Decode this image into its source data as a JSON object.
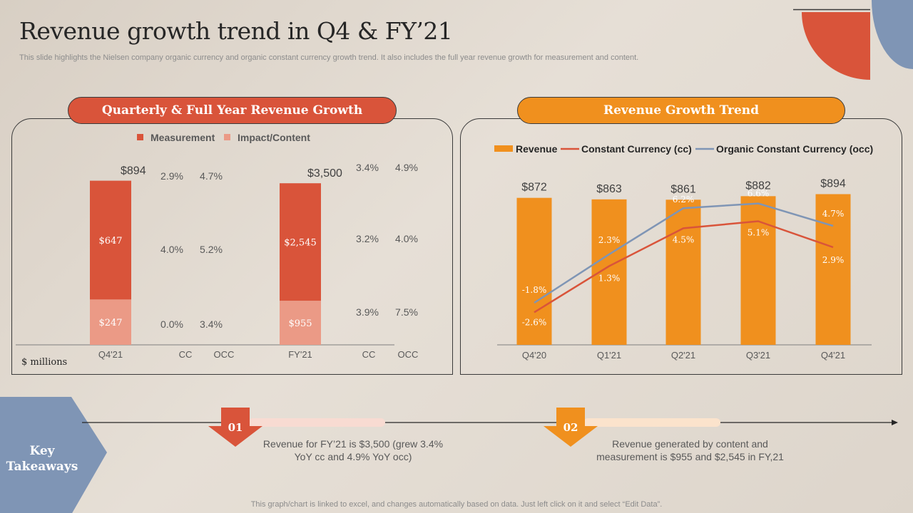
{
  "title": "Revenue growth trend in Q4 & FY’21",
  "subtitle": "This slide highlights the Nielsen company organic currency and organic constant currency growth trend. It also includes the full year revenue growth for measurement and content.",
  "left_panel": {
    "heading": "Quarterly & Full Year Revenue Growth",
    "unit_label": "$ millions"
  },
  "right_panel": {
    "heading": "Revenue Growth Trend"
  },
  "colors": {
    "measurement": "#d9543a",
    "content": "#eb9a86",
    "revenue": "#f0901e",
    "cc": "#d9543a",
    "occ": "#7f95b5",
    "navy": "#7f95b5"
  },
  "chart_data": [
    {
      "type": "bar",
      "stacked": true,
      "legend": [
        "Measurement",
        "Impact/Content"
      ],
      "legend_position": "top",
      "categories": [
        "Q4'21",
        "FY'21"
      ],
      "series": [
        {
          "name": "Measurement",
          "values": [
            647,
            2545
          ],
          "labels": [
            "$647",
            "$2,545"
          ]
        },
        {
          "name": "Impact/Content",
          "values": [
            247,
            955
          ],
          "labels": [
            "$247",
            "$955"
          ]
        }
      ],
      "totals": [
        "$894",
        "$3,500"
      ],
      "growth_columns": [
        "CC",
        "OCC"
      ],
      "growth_table": [
        {
          "category": "Q4'21",
          "rows": [
            [
              "2.9%",
              "4.7%"
            ],
            [
              "4.0%",
              "5.2%"
            ],
            [
              "0.0%",
              "3.4%"
            ]
          ]
        },
        {
          "category": "FY'21",
          "rows": [
            [
              "3.4%",
              "4.9%"
            ],
            [
              "3.2%",
              "4.0%"
            ],
            [
              "3.9%",
              "7.5%"
            ]
          ]
        }
      ],
      "ylabel": "$ millions",
      "ylim": [
        0,
        3500
      ],
      "grid": false
    },
    {
      "type": "bar",
      "legend": [
        "Revenue",
        "Constant Currency (cc)",
        "Organic Constant Currency (occ)"
      ],
      "legend_position": "top",
      "categories": [
        "Q4'20",
        "Q1'21",
        "Q2'21",
        "Q3'21",
        "Q4'21"
      ],
      "revenue": {
        "name": "Revenue",
        "values": [
          872,
          863,
          861,
          882,
          894
        ],
        "labels": [
          "$872",
          "$863",
          "$861",
          "$882",
          "$894"
        ]
      },
      "lines": [
        {
          "name": "Constant Currency (cc)",
          "values": [
            -2.6,
            1.3,
            4.5,
            5.1,
            2.9
          ],
          "labels": [
            "-2.6%",
            "1.3%",
            "4.5%",
            "5.1%",
            "2.9%"
          ]
        },
        {
          "name": "Organic Constant Currency (occ)",
          "values": [
            -1.8,
            2.3,
            6.2,
            6.6,
            4.7
          ],
          "labels": [
            "-1.8%",
            "2.3%",
            "6.2%",
            "6.6%",
            "4.7%"
          ]
        }
      ],
      "grid": false
    }
  ],
  "takeaways": {
    "label_line1": "Key",
    "label_line2": "Takeaways",
    "items": [
      {
        "number": "01",
        "text_line1": "Revenue for FY’21 is $3,500 (grew 3.4%",
        "text_line2": "YoY cc and 4.9% YoY occ)"
      },
      {
        "number": "02",
        "text_line1": "Revenue generated by content and",
        "text_line2": "measurement is $955 and $2,545 in FY,21"
      }
    ]
  },
  "footer": "This graph/chart is linked to excel,  and changes automatically based on data. Just left click on it and select “Edit Data”."
}
